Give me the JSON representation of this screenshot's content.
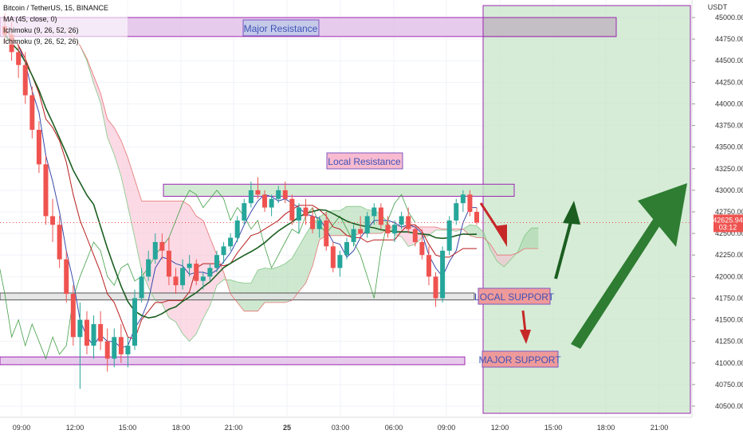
{
  "legend": {
    "symbol_line": "Bitcoin / TetherUS, 15, BINANCE",
    "ma_line": "MA (45, close, 0)",
    "ichimoku_1": "Ichimoku (9, 26, 52, 26)",
    "ichimoku_2": "Ichimoku (9, 26, 52, 26)"
  },
  "price_axis": {
    "currency": "USDT",
    "last_price": "42625.94",
    "countdown": "03:12"
  },
  "colors": {
    "up": "#26a69a",
    "down": "#ef5350",
    "ma": "#1b5e20",
    "kijun": "#b71c1c",
    "tenkan": "#3949ab",
    "chikou": "#43a047",
    "cloud_bull": "#a5d6a7",
    "cloud_bear": "#f8bbd0",
    "projection_zone": "#c8e6c9",
    "zone_border": "#9c27b0",
    "label_text": "#3f51b5",
    "arrow_down": "#c62828",
    "arrow_up": "#2e7d32"
  },
  "chart_data": {
    "type": "candlestick",
    "symbol": "Bitcoin / TetherUS",
    "interval": "15",
    "exchange": "BINANCE",
    "y_axis": {
      "range": [
        40400,
        45150
      ],
      "ticks": [
        40500,
        40750,
        41000,
        41250,
        41500,
        41750,
        42000,
        42250,
        42500,
        42750,
        43000,
        43250,
        43500,
        43750,
        44000,
        44250,
        44500,
        44750,
        45000
      ],
      "tick_labels": [
        "40500.00",
        "40750.00",
        "41000.00",
        "41250.00",
        "41500.00",
        "41750.00",
        "42000.00",
        "42250.00",
        "42500.00",
        "42750.00",
        "43000.00",
        "43250.00",
        "43500.00",
        "43750.00",
        "44000.00",
        "44250.00",
        "44500.00",
        "44750.00",
        "45000.00"
      ]
    },
    "x_axis": {
      "ticks": [
        "09:00",
        "12:00",
        "15:00",
        "18:00",
        "21:00",
        "25",
        "03:00",
        "06:00",
        "09:00",
        "12:00",
        "15:00",
        "18:00",
        "21:00"
      ]
    },
    "candles": [
      [
        44900,
        45050,
        44700,
        44800
      ],
      [
        44800,
        44950,
        44500,
        44600
      ],
      [
        44600,
        44700,
        44300,
        44450
      ],
      [
        44450,
        44600,
        44000,
        44100
      ],
      [
        44100,
        44200,
        43600,
        43700
      ],
      [
        43700,
        43800,
        43200,
        43300
      ],
      [
        43300,
        43400,
        42600,
        42700
      ],
      [
        42700,
        42900,
        42400,
        42600
      ],
      [
        42600,
        42700,
        42100,
        42200
      ],
      [
        42200,
        42300,
        41700,
        41800
      ],
      [
        41800,
        41900,
        41200,
        41300
      ],
      [
        41300,
        41700,
        40700,
        41500
      ],
      [
        41500,
        41600,
        41100,
        41200
      ],
      [
        41200,
        41550,
        41050,
        41450
      ],
      [
        41450,
        41600,
        41150,
        41250
      ],
      [
        41250,
        41400,
        40900,
        41050
      ],
      [
        41050,
        41400,
        40950,
        41300
      ],
      [
        41300,
        41450,
        41000,
        41100
      ],
      [
        41100,
        41300,
        40950,
        41200
      ],
      [
        41200,
        41850,
        41150,
        41750
      ],
      [
        41750,
        42100,
        41700,
        42000
      ],
      [
        42000,
        42300,
        41950,
        42200
      ],
      [
        42200,
        42500,
        42150,
        42400
      ],
      [
        42400,
        42500,
        42200,
        42300
      ],
      [
        42300,
        42450,
        41900,
        42000
      ],
      [
        42000,
        42100,
        41800,
        41900
      ],
      [
        41900,
        42200,
        41850,
        42100
      ],
      [
        42100,
        42250,
        42000,
        42150
      ],
      [
        42150,
        42200,
        41900,
        41950
      ],
      [
        41950,
        42050,
        41850,
        42000
      ],
      [
        42000,
        42150,
        41950,
        42100
      ],
      [
        42100,
        42300,
        42050,
        42250
      ],
      [
        42250,
        42400,
        42150,
        42350
      ],
      [
        42350,
        42500,
        42300,
        42450
      ],
      [
        42450,
        42700,
        42400,
        42650
      ],
      [
        42650,
        42900,
        42600,
        42850
      ],
      [
        42850,
        43100,
        42800,
        43000
      ],
      [
        43000,
        43150,
        42900,
        42950
      ],
      [
        42950,
        43000,
        42750,
        42800
      ],
      [
        42800,
        42950,
        42700,
        42900
      ],
      [
        42900,
        43050,
        42850,
        43000
      ],
      [
        43000,
        43100,
        42850,
        42900
      ],
      [
        42900,
        42950,
        42600,
        42650
      ],
      [
        42650,
        42850,
        42500,
        42800
      ],
      [
        42800,
        42900,
        42600,
        42700
      ],
      [
        42700,
        42800,
        42500,
        42550
      ],
      [
        42550,
        42700,
        42450,
        42650
      ],
      [
        42650,
        42750,
        42300,
        42350
      ],
      [
        42350,
        42400,
        42050,
        42100
      ],
      [
        42100,
        42300,
        42000,
        42250
      ],
      [
        42250,
        42450,
        42200,
        42400
      ],
      [
        42400,
        42600,
        42350,
        42550
      ],
      [
        42550,
        42700,
        42450,
        42500
      ],
      [
        42500,
        42750,
        42450,
        42700
      ],
      [
        42700,
        42850,
        42600,
        42800
      ],
      [
        42800,
        42850,
        42550,
        42600
      ],
      [
        42600,
        42700,
        42450,
        42500
      ],
      [
        42500,
        42650,
        42400,
        42600
      ],
      [
        42600,
        42750,
        42550,
        42700
      ],
      [
        42700,
        42800,
        42500,
        42550
      ],
      [
        42550,
        42600,
        42350,
        42400
      ],
      [
        42400,
        42550,
        42200,
        42250
      ],
      [
        42250,
        42350,
        41900,
        42000
      ],
      [
        42000,
        42050,
        41650,
        41750
      ],
      [
        41750,
        42350,
        41700,
        42300
      ],
      [
        42300,
        42700,
        42250,
        42650
      ],
      [
        42650,
        42900,
        42600,
        42850
      ],
      [
        42850,
        43000,
        42750,
        42950
      ],
      [
        42950,
        43000,
        42700,
        42750
      ],
      [
        42750,
        42800,
        42600,
        42626
      ]
    ],
    "moving_average": {
      "name": "MA (45, close, 0)"
    },
    "ichimoku": {
      "settings": "9, 26, 52, 26"
    },
    "zones": [
      {
        "label": "Major Resistance",
        "from": 44780,
        "to": 45000
      },
      {
        "label": "Local Resistance",
        "from": 42930,
        "to": 43070
      },
      {
        "label": "LOCAL SUPPORT",
        "from": 41730,
        "to": 41810
      },
      {
        "label": "MAJOR SUPPORT",
        "from": 40980,
        "to": 41070
      }
    ],
    "last_price": 42625.94
  }
}
